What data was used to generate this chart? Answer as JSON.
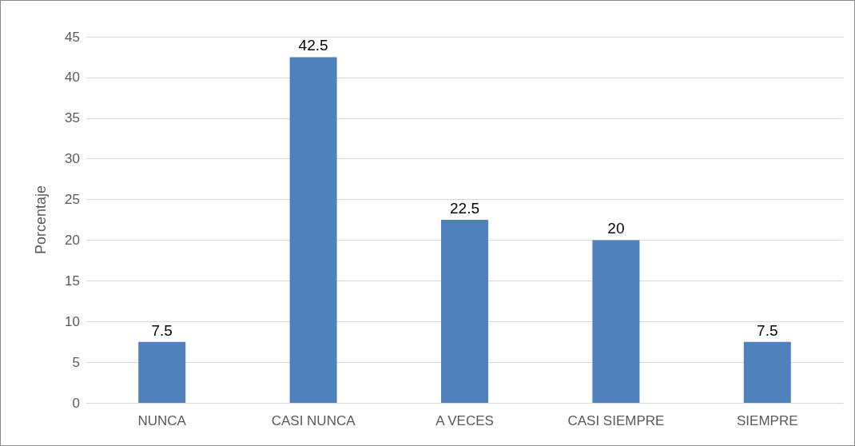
{
  "chart_data": {
    "type": "bar",
    "ylabel": "Porcentaje",
    "categories": [
      "NUNCA",
      "CASI NUNCA",
      "A VECES",
      "CASI SIEMPRE",
      "SIEMPRE"
    ],
    "values": [
      7.5,
      42.5,
      22.5,
      20,
      7.5
    ],
    "color": "#4f81bd",
    "ylim": [
      0,
      45
    ],
    "yticks": [
      0,
      5,
      10,
      15,
      20,
      25,
      30,
      35,
      40,
      45
    ],
    "grid": "y",
    "data_labels": true
  }
}
